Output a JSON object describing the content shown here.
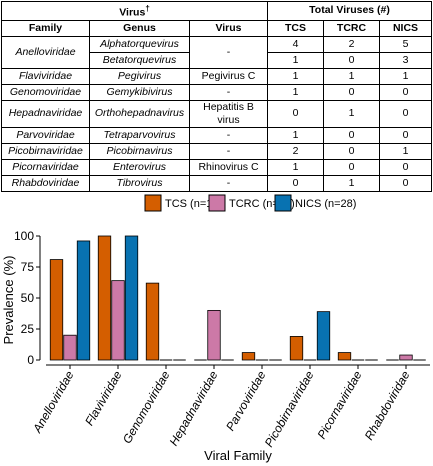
{
  "table": {
    "group_headers": {
      "virus": "Virus",
      "virus_mark": "†",
      "total": "Total Viruses (#)"
    },
    "col_headers": [
      "Family",
      "Genus",
      "Virus",
      "TCS",
      "TCRC",
      "NICS"
    ],
    "rows": [
      {
        "family": "Anelloviridae",
        "genus": "Alphatorquevirus",
        "virus": "-",
        "tcs": "4",
        "tcrc": "2",
        "nics": "5"
      },
      {
        "family": "",
        "genus": "Betatorquevirus",
        "virus": "",
        "tcs": "1",
        "tcrc": "0",
        "nics": "3"
      },
      {
        "family": "Flaviviridae",
        "genus": "Pegivirus",
        "virus": "Pegivirus C",
        "tcs": "1",
        "tcrc": "1",
        "nics": "1"
      },
      {
        "family": "Genomoviridae",
        "genus": "Gemykibivirus",
        "virus": "-",
        "tcs": "1",
        "tcrc": "0",
        "nics": "0"
      },
      {
        "family": "Hepadnaviridae",
        "genus": "Orthohepadnavirus",
        "virus": "Hepatitis B virus",
        "tcs": "0",
        "tcrc": "1",
        "nics": "0"
      },
      {
        "family": "Parvoviridae",
        "genus": "Tetraparvovirus",
        "virus": "-",
        "tcs": "1",
        "tcrc": "0",
        "nics": "0"
      },
      {
        "family": "Picobirnaviridae",
        "genus": "Picobirnavirus",
        "virus": "-",
        "tcs": "2",
        "tcrc": "0",
        "nics": "1"
      },
      {
        "family": "Picornaviridae",
        "genus": "Enterovirus",
        "virus": "Rhinovirus C",
        "tcs": "1",
        "tcrc": "0",
        "nics": "0"
      },
      {
        "family": "Rhabdoviridae",
        "genus": "Tibrovirus",
        "virus": "-",
        "tcs": "0",
        "tcrc": "1",
        "nics": "0"
      }
    ]
  },
  "chart_data": {
    "type": "bar",
    "title": "",
    "xlabel": "Viral Family",
    "ylabel": "Prevalence (%)",
    "ylim": [
      0,
      100
    ],
    "yticks": [
      0,
      25,
      50,
      75,
      100
    ],
    "legend_position": "top",
    "grid": false,
    "categories": [
      "Anelloviridae",
      "Flaviviridae",
      "Genomoviridae",
      "Hepadnaviridae",
      "Parvoviridae",
      "Picobirnaviridae",
      "Picornaviridae",
      "Rhabdoviridae"
    ],
    "series": [
      {
        "name": "TCS (n=16)",
        "color": "#d45e00",
        "values": [
          81,
          100,
          62,
          0,
          6,
          19,
          6,
          0
        ]
      },
      {
        "name": "TCRC (n=25)",
        "color": "#cc79a7",
        "values": [
          20,
          64,
          0,
          40,
          0,
          0,
          0,
          4
        ]
      },
      {
        "name": "NICS (n=28)",
        "color": "#0872b1",
        "values": [
          96,
          100,
          0,
          0,
          0,
          39,
          0,
          0
        ]
      }
    ]
  }
}
